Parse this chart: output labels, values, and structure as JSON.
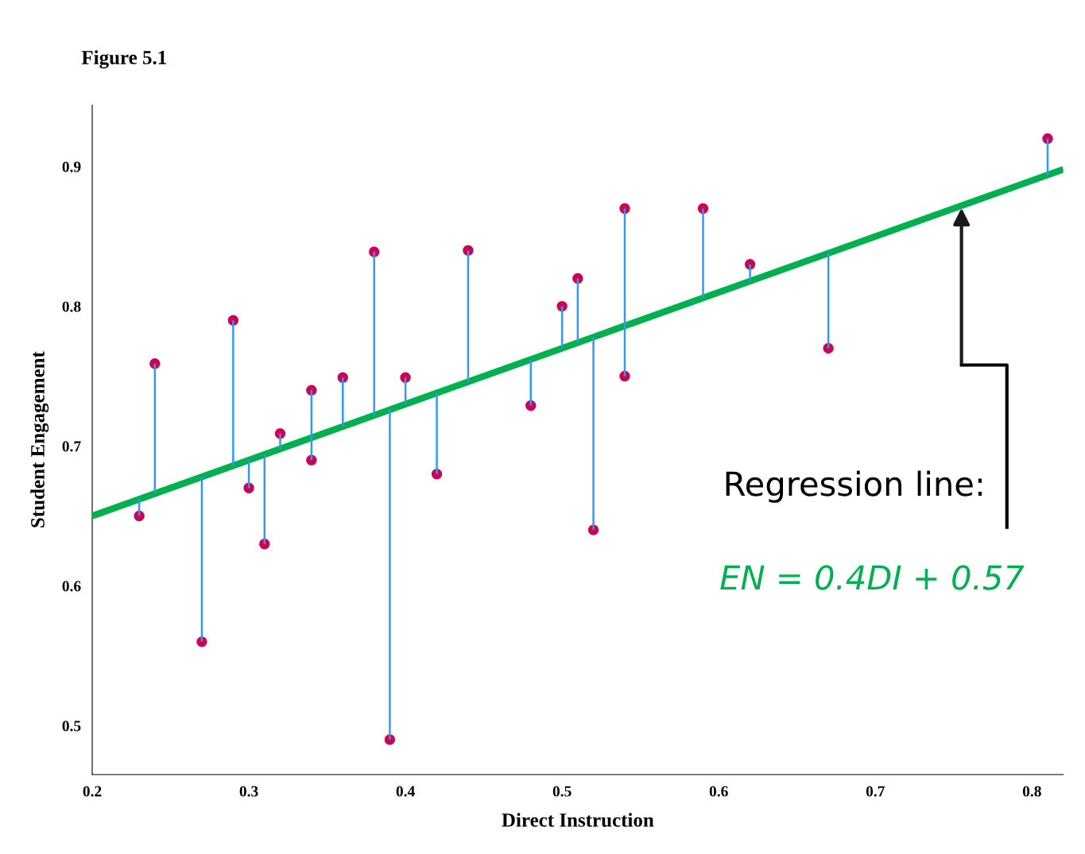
{
  "chart_data": {
    "type": "scatter",
    "title": "Figure 5.1",
    "xlabel": "Direct Instruction",
    "ylabel": "Student Engagement",
    "xlim": [
      0.2,
      0.82
    ],
    "xticks": [
      0.2,
      0.3,
      0.4,
      0.5,
      0.6,
      0.7,
      0.8
    ],
    "ylim": [
      0.465,
      0.944
    ],
    "yticks": [
      0.5,
      0.6,
      0.7,
      0.8,
      0.9
    ],
    "grid": false,
    "series": [
      {
        "color": "#cc0055",
        "marker": "circle",
        "x": [
          0.23,
          0.24,
          0.27,
          0.29,
          0.3,
          0.31,
          0.32,
          0.34,
          0.34,
          0.36,
          0.38,
          0.39,
          0.4,
          0.42,
          0.44,
          0.48,
          0.5,
          0.51,
          0.52,
          0.54,
          0.54,
          0.59,
          0.62,
          0.67,
          0.81
        ],
        "values": [
          0.65,
          0.759,
          0.56,
          0.79,
          0.67,
          0.63,
          0.709,
          0.74,
          0.69,
          0.749,
          0.839,
          0.49,
          0.749,
          0.68,
          0.84,
          0.729,
          0.8,
          0.82,
          0.64,
          0.87,
          0.75,
          0.87,
          0.83,
          0.77,
          0.92
        ],
        "errors": [
          [
            0.65,
            0.662
          ],
          [
            0.666,
            0.759
          ],
          [
            0.56,
            0.678
          ],
          [
            0.686,
            0.79
          ],
          [
            0.67,
            0.69
          ],
          [
            0.63,
            0.694
          ],
          [
            0.698,
            0.709
          ],
          [
            0.706,
            0.74
          ],
          [
            0.69,
            0.706
          ],
          [
            0.714,
            0.749
          ],
          [
            0.722,
            0.839
          ],
          [
            0.49,
            0.726
          ],
          [
            0.73,
            0.749
          ],
          [
            0.68,
            0.738
          ],
          [
            0.746,
            0.84
          ],
          [
            0.729,
            0.762
          ],
          [
            0.77,
            0.8
          ],
          [
            0.774,
            0.82
          ],
          [
            0.64,
            0.778
          ],
          [
            0.786,
            0.87
          ],
          [
            0.75,
            0.786
          ],
          [
            0.806,
            0.87
          ],
          [
            0.818,
            0.83
          ],
          [
            0.77,
            0.838
          ],
          [
            0.894,
            0.92
          ]
        ]
      },
      {
        "type": "line",
        "color": "#00b050",
        "line_style": "solid",
        "x": [
          0.2,
          0.82
        ],
        "values": [
          0.65,
          0.898
        ]
      }
    ],
    "annotations": [
      "Regression line:",
      "EN = 0.4DI + 0.57"
    ]
  }
}
